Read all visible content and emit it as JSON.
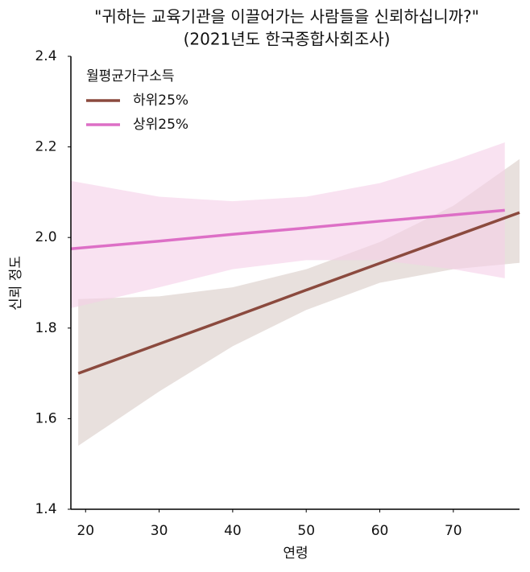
{
  "chart_data": {
    "type": "line",
    "title": "\"귀하는 교육기관을 이끌어가는 사람들을 신뢰하십니까?\"",
    "subtitle": "(2021년도 한국종합사회조사)",
    "xlabel": "연령",
    "ylabel": "신뢰 정도",
    "legend_title": "월평균가구소득",
    "xlim": [
      18,
      79
    ],
    "xticks": [
      20,
      30,
      40,
      50,
      60,
      70
    ],
    "ylim": [
      1.4,
      2.4
    ],
    "yticks": [
      1.4,
      1.6,
      1.8,
      {
        "value": 2.0,
        "label": "2.0"
      },
      2.2,
      2.4
    ],
    "legend": "upper left",
    "series": [
      {
        "name": "하위25%",
        "color": "#8b4a3e",
        "band_color": "#d9ccc6",
        "x": [
          19,
          30,
          40,
          50,
          60,
          70,
          79
        ],
        "values": [
          1.7,
          1.765,
          1.824,
          1.884,
          1.943,
          2.002,
          2.055
        ],
        "lower": [
          1.54,
          1.66,
          1.76,
          1.84,
          1.9,
          1.93,
          1.944
        ],
        "upper": [
          1.864,
          1.87,
          1.89,
          1.93,
          1.99,
          2.07,
          2.173
        ]
      },
      {
        "name": "상위25%",
        "color": "#dd6fc6",
        "band_color": "#f5cfe8",
        "x": [
          18,
          30,
          40,
          50,
          60,
          70,
          77
        ],
        "values": [
          1.975,
          1.992,
          2.007,
          2.021,
          2.036,
          2.05,
          2.06
        ],
        "lower": [
          1.844,
          1.89,
          1.93,
          1.95,
          1.95,
          1.93,
          1.91
        ],
        "upper": [
          2.125,
          2.09,
          2.08,
          2.09,
          2.12,
          2.17,
          2.21
        ]
      }
    ]
  }
}
